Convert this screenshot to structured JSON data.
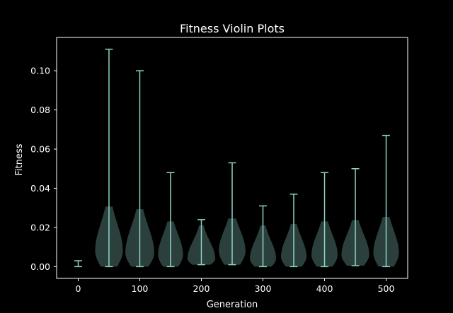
{
  "chart_data": {
    "type": "violin",
    "title": "Fitness Violin Plots",
    "xlabel": "Generation",
    "ylabel": "Fitness",
    "xlim": [
      -35,
      535
    ],
    "ylim": [
      -0.006,
      0.117
    ],
    "xticks": [
      "0",
      "100",
      "200",
      "300",
      "400",
      "500"
    ],
    "xtick_values": [
      0,
      100,
      200,
      300,
      400,
      500
    ],
    "yticks": [
      "0.00",
      "0.02",
      "0.04",
      "0.06",
      "0.08",
      "0.10"
    ],
    "ytick_values": [
      0.0,
      0.02,
      0.04,
      0.06,
      0.08,
      0.1
    ],
    "grid": false,
    "colors": {
      "background": "#000000",
      "axes": "#ffffff",
      "line": "#8dd3c7",
      "fill": "#8dd3c7"
    },
    "violins": [
      {
        "generation": 0,
        "min": 0.0,
        "max": 0.003,
        "mode": 0.0015,
        "width": 0.0
      },
      {
        "generation": 50,
        "min": 0.0,
        "max": 0.111,
        "mode": 0.008,
        "width": 0.5
      },
      {
        "generation": 100,
        "min": 0.0,
        "max": 0.1,
        "mode": 0.007,
        "width": 0.52
      },
      {
        "generation": 150,
        "min": 0.0,
        "max": 0.048,
        "mode": 0.006,
        "width": 0.45
      },
      {
        "generation": 200,
        "min": 0.001,
        "max": 0.024,
        "mode": 0.004,
        "width": 0.5
      },
      {
        "generation": 250,
        "min": 0.001,
        "max": 0.053,
        "mode": 0.008,
        "width": 0.48
      },
      {
        "generation": 300,
        "min": 0.0,
        "max": 0.031,
        "mode": 0.004,
        "width": 0.47
      },
      {
        "generation": 350,
        "min": 0.0,
        "max": 0.037,
        "mode": 0.005,
        "width": 0.46
      },
      {
        "generation": 400,
        "min": 0.0,
        "max": 0.048,
        "mode": 0.006,
        "width": 0.47
      },
      {
        "generation": 450,
        "min": 0.0005,
        "max": 0.05,
        "mode": 0.006,
        "width": 0.5
      },
      {
        "generation": 500,
        "min": 0.0,
        "max": 0.067,
        "mode": 0.007,
        "width": 0.46
      }
    ]
  }
}
